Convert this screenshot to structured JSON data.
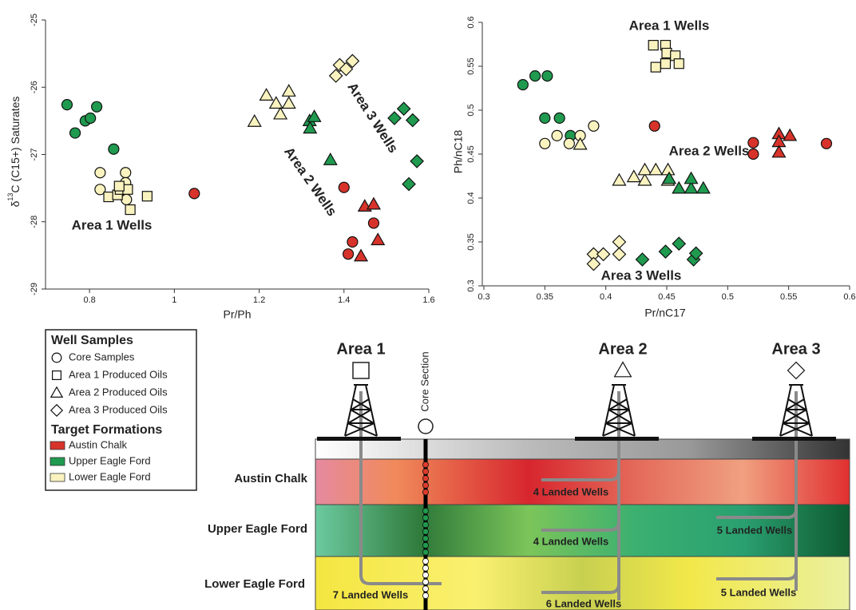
{
  "chart_data": [
    {
      "type": "scatter",
      "x_label": "Pr/Ph",
      "y_label": {
        "text": "δ",
        "sup": "13",
        "after": "C (C15+) Saturates"
      },
      "xlim": [
        0.7,
        1.6
      ],
      "xticks": [
        0.8,
        1,
        1.2,
        1.4,
        1.6
      ],
      "ylim": [
        -29,
        -25
      ],
      "yticks": [
        -25,
        -26,
        -27,
        -28,
        -29
      ],
      "annotations": [
        "Area 1 Wells",
        "Area 2 Wells",
        "Area 3 Wells"
      ],
      "series": [
        {
          "shape": "circle",
          "color": "#1f9a4f",
          "x": [
            0.747,
            0.766,
            0.79,
            0.802,
            0.817,
            0.857
          ],
          "y": [
            -26.26,
            -26.68,
            -26.5,
            -26.46,
            -26.29,
            -26.92
          ]
        },
        {
          "shape": "circle",
          "color": "#faf3bf",
          "x": [
            0.825,
            0.825,
            0.885,
            0.885,
            0.887,
            0.87
          ],
          "y": [
            -27.27,
            -27.52,
            -27.27,
            -27.42,
            -27.67,
            -27.56
          ]
        },
        {
          "shape": "square",
          "color": "#faf3bf",
          "x": [
            0.845,
            0.866,
            0.872,
            0.89,
            0.896,
            0.936,
            0.87
          ],
          "y": [
            -27.63,
            -27.6,
            -27.52,
            -27.52,
            -27.82,
            -27.62,
            -27.47
          ]
        },
        {
          "shape": "circle",
          "color": "#d7332b",
          "x": [
            1.047,
            1.4,
            1.42,
            1.41,
            1.47
          ],
          "y": [
            -27.58,
            -27.49,
            -28.3,
            -28.48,
            -28.02
          ]
        },
        {
          "shape": "triangle",
          "color": "#d7332b",
          "x": [
            1.449,
            1.47,
            1.48,
            1.44
          ],
          "y": [
            -27.77,
            -27.74,
            -28.27,
            -28.51
          ]
        },
        {
          "shape": "triangle",
          "color": "#faf3bf",
          "x": [
            1.189,
            1.217,
            1.24,
            1.25,
            1.27,
            1.27
          ],
          "y": [
            -26.51,
            -26.12,
            -26.24,
            -26.4,
            -26.24,
            -26.06
          ]
        },
        {
          "shape": "triangle",
          "color": "#1f9a4f",
          "x": [
            1.319,
            1.33,
            1.32,
            1.368
          ],
          "y": [
            -26.5,
            -26.44,
            -26.61,
            -27.08
          ]
        },
        {
          "shape": "diamond",
          "color": "#faf3bf",
          "x": [
            1.381,
            1.39,
            1.405,
            1.42
          ],
          "y": [
            -25.83,
            -25.67,
            -25.73,
            -25.61
          ]
        },
        {
          "shape": "diamond",
          "color": "#1f9a4f",
          "x": [
            1.519,
            1.541,
            1.562,
            1.572,
            1.553
          ],
          "y": [
            -26.46,
            -26.32,
            -26.49,
            -27.1,
            -27.44
          ]
        }
      ]
    },
    {
      "type": "scatter",
      "x_label": "Pr/nC17",
      "y_label": "Ph/nC18",
      "xlim": [
        0.3,
        0.6
      ],
      "xticks": [
        0.3,
        0.35,
        0.4,
        0.45,
        0.5,
        0.55,
        0.6
      ],
      "ylim": [
        0.3,
        0.6
      ],
      "yticks": [
        0.3,
        0.35,
        0.4,
        0.45,
        0.5,
        0.55,
        0.6
      ],
      "annotations": [
        "Area 1 Wells",
        "Area 2 Wells",
        "Area 3 Wells"
      ],
      "series": [
        {
          "shape": "circle",
          "color": "#1f9a4f",
          "x": [
            0.332,
            0.342,
            0.352,
            0.35,
            0.362,
            0.371
          ],
          "y": [
            0.529,
            0.539,
            0.539,
            0.491,
            0.491,
            0.471
          ]
        },
        {
          "shape": "circle",
          "color": "#faf3bf",
          "x": [
            0.35,
            0.36,
            0.37,
            0.379,
            0.39
          ],
          "y": [
            0.462,
            0.471,
            0.462,
            0.471,
            0.482
          ]
        },
        {
          "shape": "circle",
          "color": "#d7332b",
          "x": [
            0.44,
            0.521,
            0.521,
            0.581
          ],
          "y": [
            0.482,
            0.463,
            0.45,
            0.462
          ]
        },
        {
          "shape": "triangle",
          "color": "#d7332b",
          "x": [
            0.542,
            0.542,
            0.542,
            0.551
          ],
          "y": [
            0.473,
            0.464,
            0.452,
            0.471
          ]
        },
        {
          "shape": "square",
          "color": "#faf3bf",
          "x": [
            0.439,
            0.449,
            0.45,
            0.457,
            0.449,
            0.441,
            0.46
          ],
          "y": [
            0.574,
            0.574,
            0.565,
            0.562,
            0.553,
            0.549,
            0.553
          ]
        },
        {
          "shape": "triangle",
          "color": "#faf3bf",
          "x": [
            0.411,
            0.423,
            0.432,
            0.432,
            0.441,
            0.451,
            0.451,
            0.379
          ],
          "y": [
            0.42,
            0.424,
            0.42,
            0.432,
            0.432,
            0.42,
            0.432,
            0.461
          ]
        },
        {
          "shape": "triangle",
          "color": "#1f9a4f",
          "x": [
            0.452,
            0.46,
            0.47,
            0.47,
            0.48
          ],
          "y": [
            0.422,
            0.411,
            0.411,
            0.422,
            0.411
          ]
        },
        {
          "shape": "diamond",
          "color": "#faf3bf",
          "x": [
            0.39,
            0.39,
            0.398,
            0.411,
            0.411
          ],
          "y": [
            0.336,
            0.325,
            0.336,
            0.35,
            0.336
          ]
        },
        {
          "shape": "diamond",
          "color": "#1f9a4f",
          "x": [
            0.43,
            0.449,
            0.46,
            0.472,
            0.474
          ],
          "y": [
            0.33,
            0.339,
            0.348,
            0.33,
            0.337
          ]
        }
      ]
    }
  ],
  "legend": {
    "samples_title": "Well Samples",
    "samples": [
      {
        "shape": "circle",
        "label": "Core Samples"
      },
      {
        "shape": "square",
        "label": "Area 1 Produced Oils"
      },
      {
        "shape": "triangle",
        "label": "Area 2 Produced Oils"
      },
      {
        "shape": "diamond",
        "label": "Area 3 Produced Oils"
      }
    ],
    "formations_title": "Target Formations",
    "formations": [
      {
        "color": "#d7332b",
        "label": "Austin Chalk"
      },
      {
        "color": "#1f9a4f",
        "label": "Upper Eagle Ford"
      },
      {
        "color": "#faf3bf",
        "label": "Lower Eagle Ford"
      }
    ]
  },
  "diagram": {
    "areas": [
      "Area 1",
      "Area 2",
      "Area 3"
    ],
    "core_label": "Core Section",
    "formations": [
      "Austin Chalk",
      "Upper Eagle Ford",
      "Lower Eagle Ford"
    ],
    "landed": [
      "4 Landed Wells",
      "4 Landed Wells",
      "5 Landed Wells",
      "7 Landed Wells",
      "6 Landed Wells",
      "5 Landed Wells"
    ]
  }
}
